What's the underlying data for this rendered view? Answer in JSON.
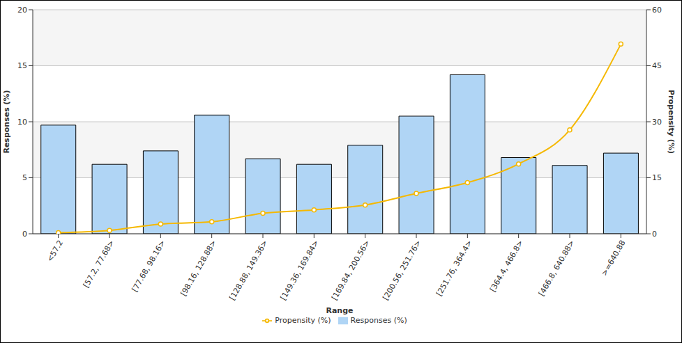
{
  "chart_data": {
    "type": "bar",
    "x_label": "Range",
    "y_label": "Responses (%)",
    "y2_label": "Propensity (%)",
    "categories": [
      "<57.2",
      "[57.2, 77.68>",
      "[77.68, 98.16>",
      "[98.16, 128.88>",
      "[128.88, 149.36>",
      "[149.36, 169.84>",
      "[169.84, 200.56>",
      "[200.56, 251.76>",
      "[251.76, 364.4>",
      "[364.4, 466.8>",
      "[466.8, 640.88>",
      ">=640.88"
    ],
    "series": [
      {
        "name": "Responses (%)",
        "type": "bar",
        "color": "#b0d5f5",
        "values": [
          9.7,
          6.2,
          7.4,
          10.6,
          6.7,
          6.2,
          7.9,
          10.5,
          14.2,
          6.8,
          6.1,
          7.2
        ]
      },
      {
        "name": "Propensity (%)",
        "type": "line",
        "axis": "y2",
        "color": "#f5b800",
        "marker": "circle",
        "values": [
          0.3,
          0.9,
          2.6,
          3.2,
          5.5,
          6.4,
          7.7,
          10.8,
          13.7,
          18.7,
          27.8,
          50.8
        ]
      }
    ],
    "ylim": [
      0,
      20
    ],
    "yticks": [
      0,
      5,
      10,
      15,
      20
    ],
    "y2lim": [
      0,
      60
    ],
    "y2ticks": [
      0,
      15,
      30,
      45,
      60
    ],
    "grid": true,
    "legend": "bottom"
  }
}
